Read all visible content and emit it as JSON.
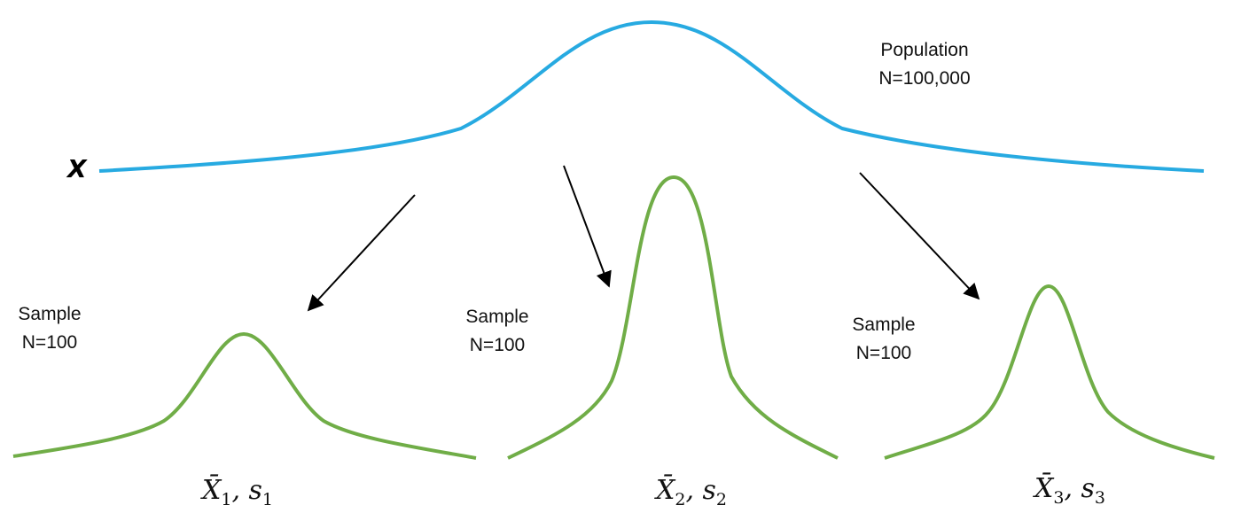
{
  "population": {
    "variable": "X",
    "title": "Population",
    "size": "N=100,000",
    "color": "#27AAE1"
  },
  "samples": [
    {
      "title": "Sample",
      "size": "N=100",
      "stat_mean": "X̄",
      "index": "1",
      "sep": ", ",
      "stat_sd": "s",
      "color": "#70AD47"
    },
    {
      "title": "Sample",
      "size": "N=100",
      "stat_mean": "X̄",
      "index": "2",
      "sep": ", ",
      "stat_sd": "s",
      "color": "#70AD47"
    },
    {
      "title": "Sample",
      "size": "N=100",
      "stat_mean": "X̄",
      "index": "3",
      "sep": ", ",
      "stat_sd": "s",
      "color": "#70AD47"
    }
  ],
  "arrow_color": "#000000"
}
